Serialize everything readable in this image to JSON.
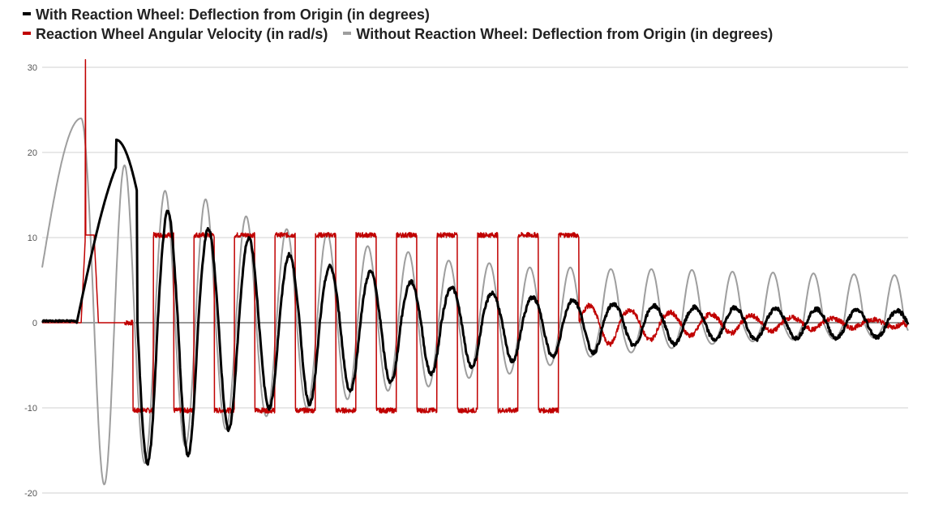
{
  "chart_data": {
    "type": "line",
    "title": "",
    "xlabel": "",
    "ylabel": "",
    "ylim": [
      -20,
      30
    ],
    "yticks": [
      -20,
      -10,
      0,
      10,
      20,
      30
    ],
    "grid": true,
    "legend_position": "top-left",
    "series": [
      {
        "name": "With Reaction Wheel: Deflection from Origin (in degrees)",
        "color": "#000000",
        "model": {
          "t0": 0.04,
          "pre": 0.2,
          "amp": [
            21.5,
            -16.5,
            13,
            -15.5,
            11,
            -12.5,
            10,
            -10,
            8,
            -9.5,
            6.6,
            -8,
            6,
            -7,
            4.8,
            -6,
            4.2,
            -5.2,
            3.5,
            -4.5,
            3,
            -4,
            2.7,
            -3.5,
            2.2,
            -2.7,
            2,
            -2.5,
            1.8,
            -2,
            1.8,
            -2,
            1.7,
            -1.8,
            1.6,
            -1.8,
            1.5,
            -1.7,
            1.4,
            -1.7,
            1.4,
            -1.6,
            1.4,
            -1.6,
            1.3,
            -1.5
          ],
          "period": 0.0468,
          "phase": 0.0,
          "noise": 0.45
        }
      },
      {
        "name": "Reaction Wheel Angular Velocity (in rad/s)",
        "color": "#c00000",
        "model": {
          "kind": "square",
          "t0": 0.045,
          "saturate": 10.3,
          "saturate_until": 0.62,
          "late_amp": [
            2,
            -2.5,
            1.5,
            -2,
            1.2,
            -1.5,
            1.0,
            -1.2,
            0.8,
            -1.0,
            0.6,
            -0.8,
            0.5,
            -0.6,
            0.4,
            -0.5
          ],
          "period": 0.0468,
          "phase": -0.012,
          "noise": 0.6
        }
      },
      {
        "name": "Without Reaction Wheel: Deflection from Origin (in degrees)",
        "color": "#9e9e9e",
        "model": {
          "start": 6.5,
          "peak": 24.0,
          "amp": [
            -19,
            18.5,
            -16.5,
            15.5,
            -14.5,
            14.5,
            -12.5,
            12.5,
            -11,
            11,
            -10,
            10.5,
            -9,
            9,
            -8,
            8.3,
            -7.5,
            7.3,
            -6.5,
            7,
            -6,
            6.5,
            -5,
            6.5,
            -4,
            6.3,
            -3.5,
            6.3,
            -3,
            6.2,
            -2.5,
            6,
            -2.2,
            5.9,
            -2,
            5.8,
            -1.9,
            5.7,
            -1.8,
            5.6,
            -1.8,
            5.5,
            -1.7,
            5.5,
            -1.7,
            5.4
          ],
          "period": 0.0468,
          "offset": 2.0
        }
      }
    ],
    "y_tick_labels": [
      "30",
      "20",
      "10",
      "0",
      "-10",
      "-20"
    ]
  },
  "legend": {
    "item1": "With Reaction Wheel: Deflection from Origin (in degrees)",
    "item2": "Reaction Wheel Angular Velocity (in rad/s)",
    "item3": "Without Reaction Wheel: Deflection from Origin (in degrees)"
  }
}
